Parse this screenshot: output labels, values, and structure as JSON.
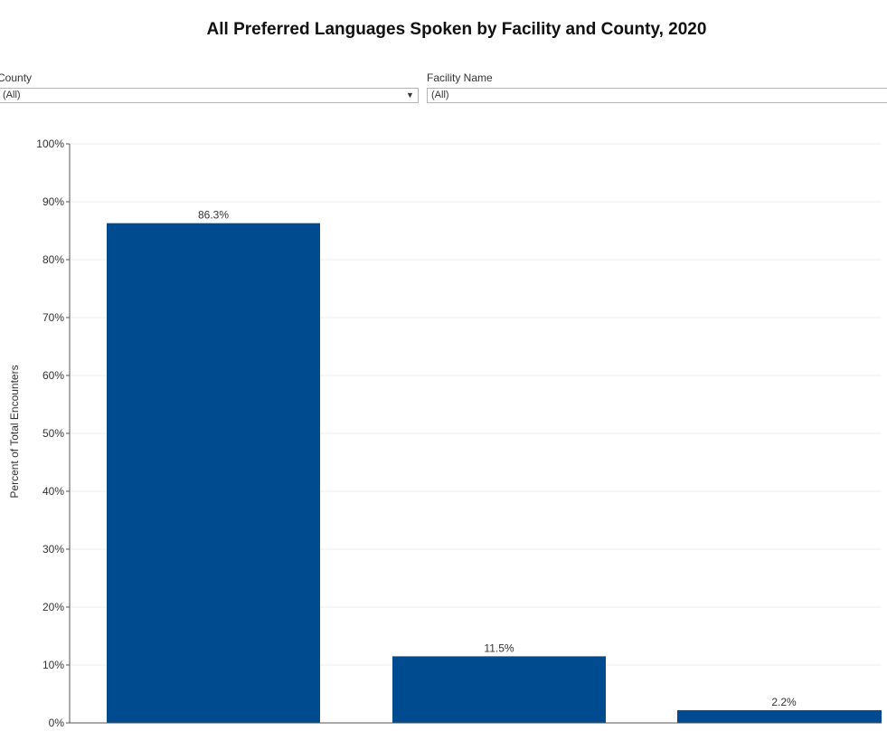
{
  "header": {
    "title": "All Preferred Languages Spoken by Facility and County, 2020"
  },
  "filters": {
    "county": {
      "label": "County",
      "value": "(All)"
    },
    "facility": {
      "label": "Facility Name",
      "value": "(All)"
    }
  },
  "colors": {
    "bar": "#004a8f",
    "grid": "#ececec",
    "axis": "#555555"
  },
  "chart_data": {
    "type": "bar",
    "ylabel": "Percent of Total Encounters",
    "ylim": [
      0,
      100
    ],
    "yticks": [
      0,
      10,
      20,
      30,
      40,
      50,
      60,
      70,
      80,
      90,
      100
    ],
    "grid": true,
    "values": [
      86.3,
      11.5,
      2.2
    ],
    "data_labels": [
      "86.3%",
      "11.5%",
      "2.2%"
    ]
  }
}
